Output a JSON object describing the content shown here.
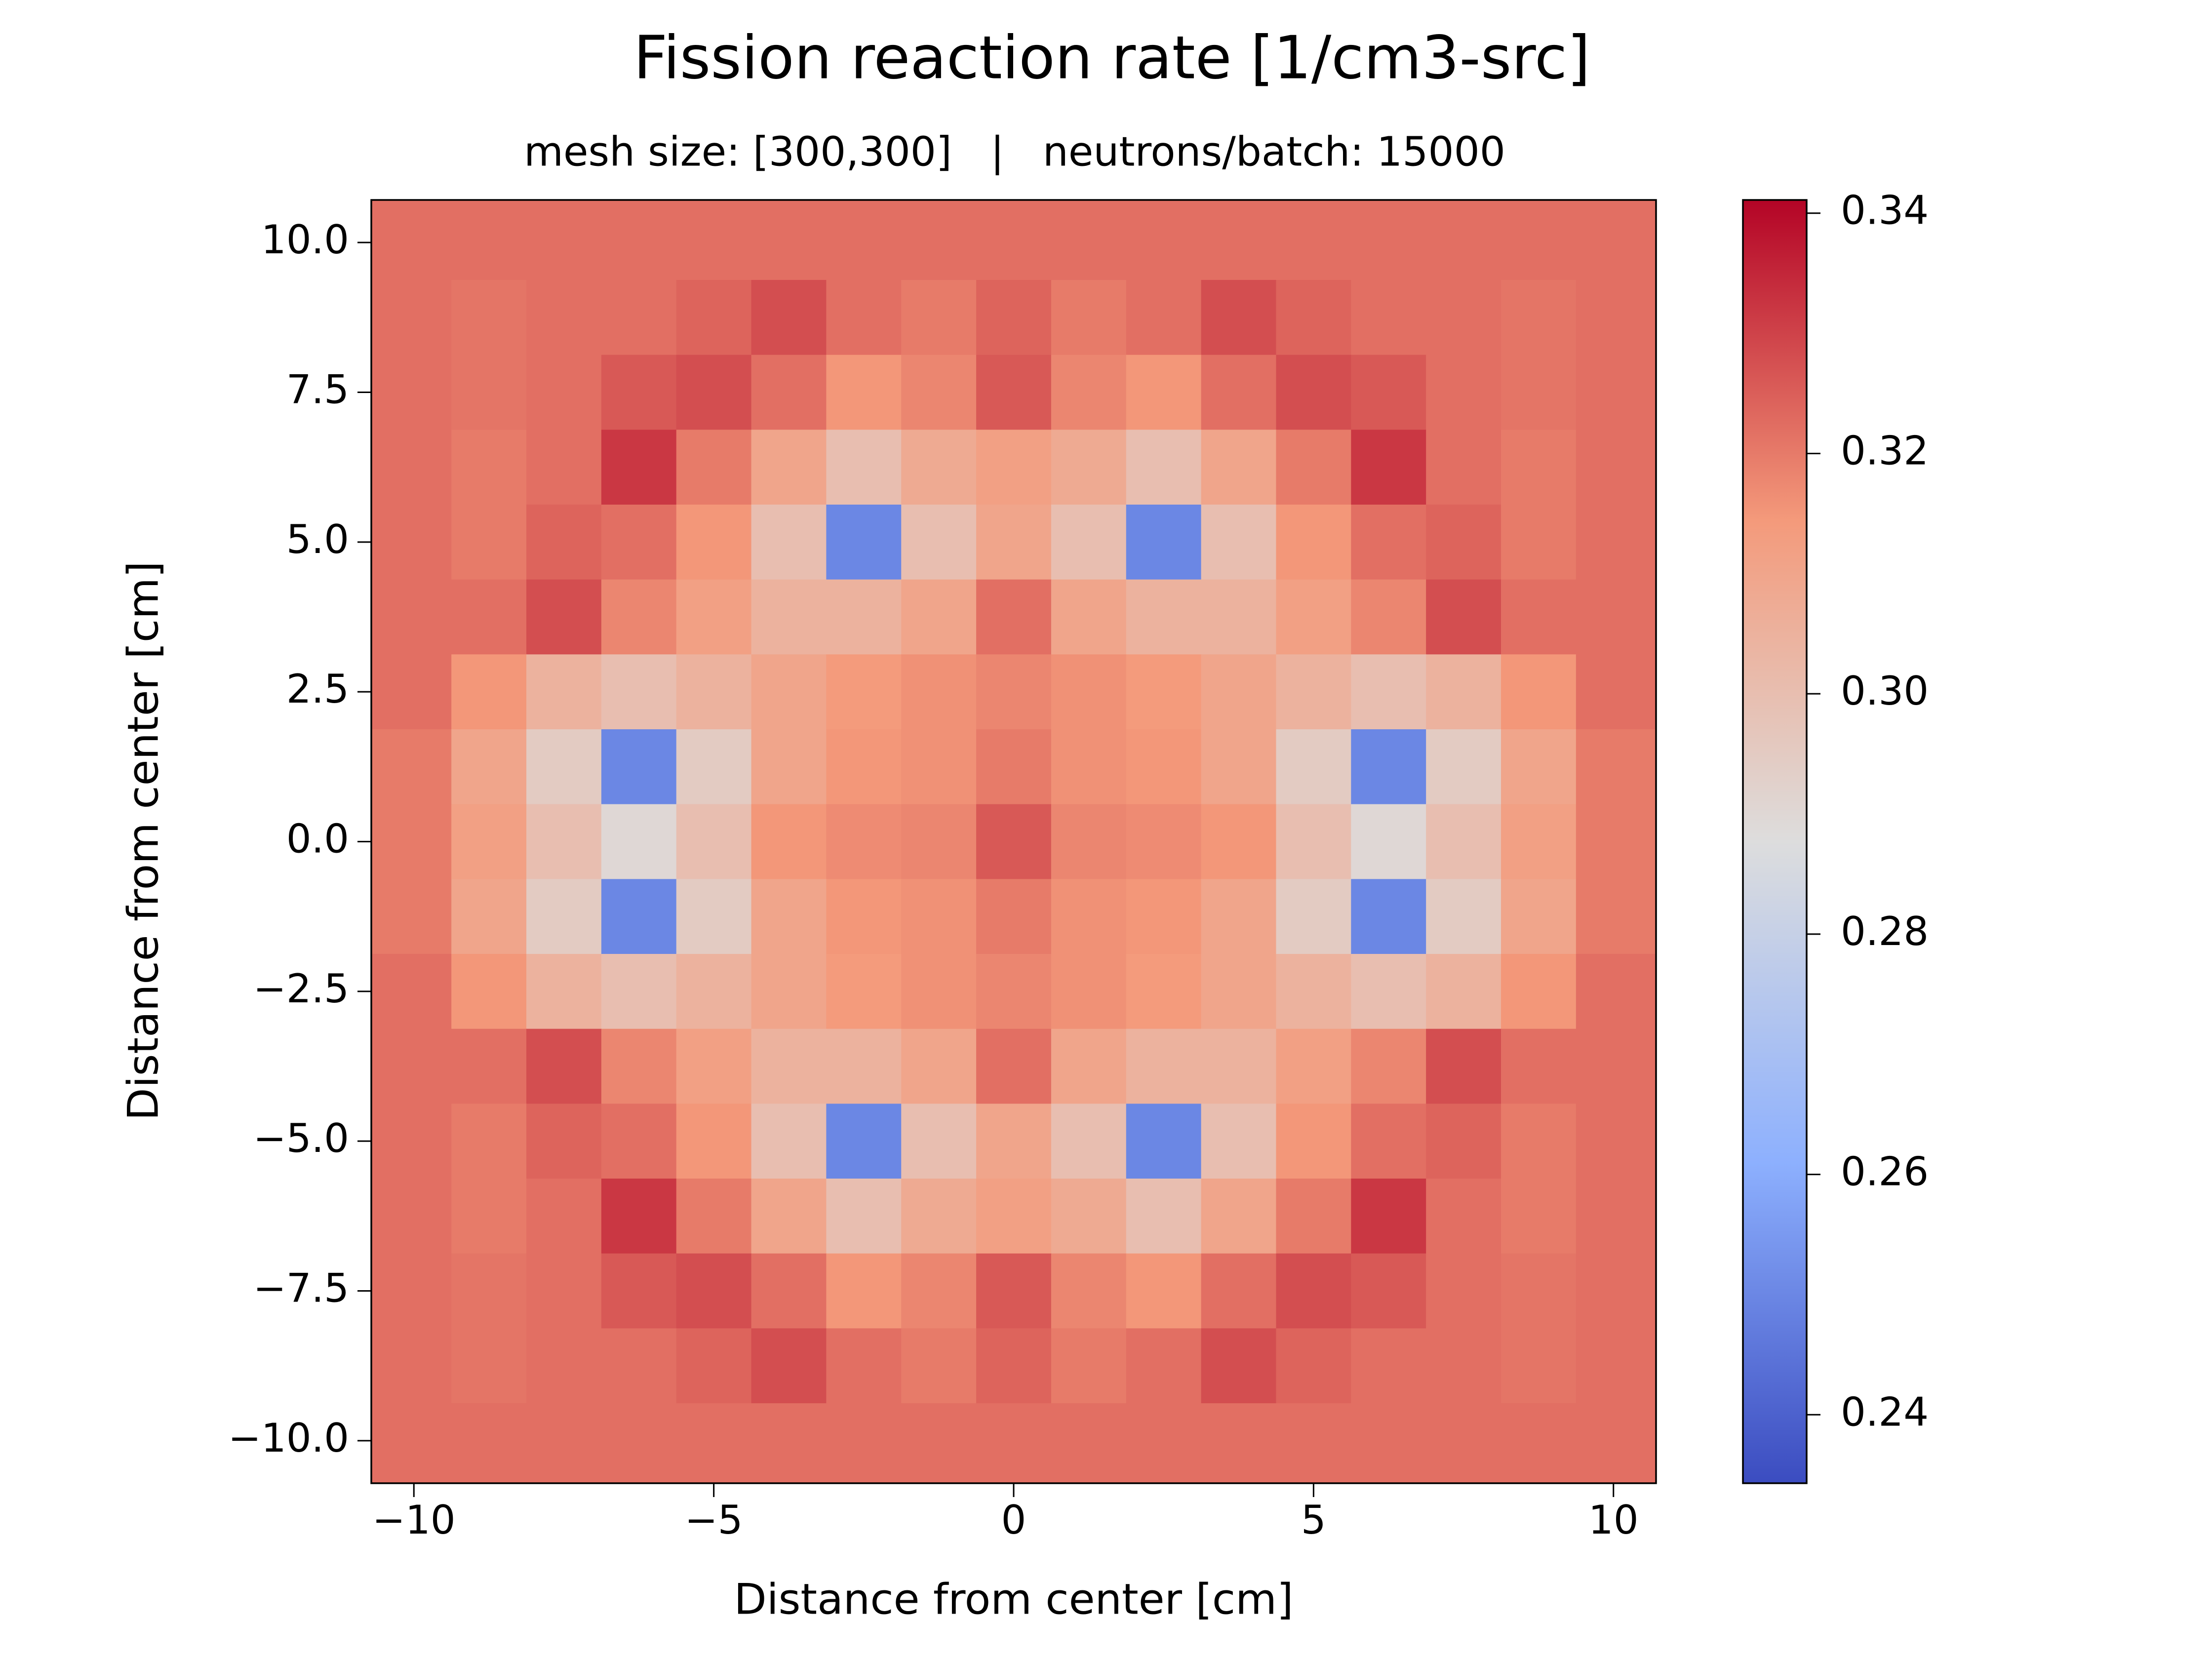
{
  "chart_data": {
    "type": "heatmap",
    "title": "Fission reaction rate [1/cm3-src]",
    "subtitle": "mesh size: [300,300]   |   neutrons/batch: 15000",
    "xlabel": "Distance from center [cm]",
    "ylabel": "Distance from center [cm]",
    "colormap": "coolwarm",
    "x": [
      -10,
      -8.75,
      -7.5,
      -6.25,
      -5,
      -3.75,
      -2.5,
      -1.25,
      0,
      1.25,
      2.5,
      3.75,
      5,
      6.25,
      7.5,
      8.75,
      10
    ],
    "y": [
      10,
      8.75,
      7.5,
      6.25,
      5,
      3.75,
      2.5,
      1.25,
      0,
      -1.25,
      -2.5,
      -3.75,
      -5,
      -6.25,
      -7.5,
      -8.75,
      -10
    ],
    "z": [
      [
        0.322,
        0.322,
        0.322,
        0.322,
        0.322,
        0.322,
        0.322,
        0.322,
        0.322,
        0.322,
        0.322,
        0.322,
        0.322,
        0.322,
        0.322,
        0.322,
        0.322
      ],
      [
        0.322,
        0.321,
        0.322,
        0.322,
        0.324,
        0.328,
        0.322,
        0.32,
        0.324,
        0.32,
        0.322,
        0.328,
        0.324,
        0.322,
        0.322,
        0.321,
        0.322
      ],
      [
        0.322,
        0.321,
        0.322,
        0.326,
        0.328,
        0.322,
        0.315,
        0.318,
        0.326,
        0.318,
        0.315,
        0.322,
        0.328,
        0.326,
        0.322,
        0.321,
        0.322
      ],
      [
        0.322,
        0.32,
        0.322,
        0.332,
        0.32,
        0.31,
        0.3,
        0.308,
        0.312,
        0.308,
        0.3,
        0.31,
        0.32,
        0.332,
        0.322,
        0.32,
        0.322
      ],
      [
        0.322,
        0.32,
        0.324,
        0.322,
        0.315,
        0.3,
        0.25,
        0.3,
        0.31,
        0.3,
        0.25,
        0.3,
        0.315,
        0.322,
        0.324,
        0.32,
        0.322
      ],
      [
        0.322,
        0.322,
        0.328,
        0.318,
        0.312,
        0.305,
        0.305,
        0.31,
        0.322,
        0.31,
        0.305,
        0.305,
        0.312,
        0.318,
        0.328,
        0.322,
        0.322
      ],
      [
        0.322,
        0.315,
        0.305,
        0.3,
        0.305,
        0.31,
        0.314,
        0.316,
        0.318,
        0.316,
        0.314,
        0.31,
        0.305,
        0.3,
        0.305,
        0.315,
        0.322
      ],
      [
        0.32,
        0.31,
        0.295,
        0.25,
        0.295,
        0.31,
        0.315,
        0.316,
        0.32,
        0.316,
        0.315,
        0.31,
        0.295,
        0.25,
        0.295,
        0.31,
        0.32
      ],
      [
        0.32,
        0.312,
        0.3,
        0.29,
        0.3,
        0.315,
        0.317,
        0.318,
        0.326,
        0.318,
        0.317,
        0.315,
        0.3,
        0.29,
        0.3,
        0.312,
        0.32
      ],
      [
        0.32,
        0.31,
        0.295,
        0.25,
        0.295,
        0.31,
        0.315,
        0.316,
        0.32,
        0.316,
        0.315,
        0.31,
        0.295,
        0.25,
        0.295,
        0.31,
        0.32
      ],
      [
        0.322,
        0.315,
        0.305,
        0.3,
        0.305,
        0.31,
        0.314,
        0.316,
        0.318,
        0.316,
        0.314,
        0.31,
        0.305,
        0.3,
        0.305,
        0.315,
        0.322
      ],
      [
        0.322,
        0.322,
        0.328,
        0.318,
        0.312,
        0.305,
        0.305,
        0.31,
        0.322,
        0.31,
        0.305,
        0.305,
        0.312,
        0.318,
        0.328,
        0.322,
        0.322
      ],
      [
        0.322,
        0.32,
        0.324,
        0.322,
        0.315,
        0.3,
        0.25,
        0.3,
        0.31,
        0.3,
        0.25,
        0.3,
        0.315,
        0.322,
        0.324,
        0.32,
        0.322
      ],
      [
        0.322,
        0.32,
        0.322,
        0.332,
        0.32,
        0.31,
        0.3,
        0.308,
        0.312,
        0.308,
        0.3,
        0.31,
        0.32,
        0.332,
        0.322,
        0.32,
        0.322
      ],
      [
        0.322,
        0.321,
        0.322,
        0.326,
        0.328,
        0.322,
        0.315,
        0.318,
        0.326,
        0.318,
        0.315,
        0.322,
        0.328,
        0.326,
        0.322,
        0.321,
        0.322
      ],
      [
        0.322,
        0.321,
        0.322,
        0.322,
        0.324,
        0.328,
        0.322,
        0.32,
        0.324,
        0.32,
        0.322,
        0.328,
        0.324,
        0.322,
        0.322,
        0.321,
        0.322
      ],
      [
        0.322,
        0.322,
        0.322,
        0.322,
        0.322,
        0.322,
        0.322,
        0.322,
        0.322,
        0.322,
        0.322,
        0.322,
        0.322,
        0.322,
        0.322,
        0.322,
        0.322
      ]
    ],
    "xlim": [
      -10.71,
      10.71
    ],
    "ylim": [
      -10.71,
      10.71
    ],
    "xticks": [
      {
        "value": -10,
        "label": "−10"
      },
      {
        "value": -5,
        "label": "−5"
      },
      0,
      5,
      10
    ],
    "yticks": [
      {
        "value": 10,
        "label": "10.0"
      },
      7.5,
      {
        "value": 5,
        "label": "5.0"
      },
      2.5,
      {
        "value": 0,
        "label": "0.0"
      },
      {
        "value": -2.5,
        "label": "−2.5"
      },
      {
        "value": -5,
        "label": "−5.0"
      },
      {
        "value": -7.5,
        "label": "−7.5"
      },
      {
        "value": -10,
        "label": "−10.0"
      }
    ],
    "colorbar": {
      "lim": [
        0.2343,
        0.3411
      ],
      "ticks": [
        0.24,
        0.26,
        0.28,
        {
          "value": 0.3,
          "label": "0.30"
        },
        0.32,
        0.34
      ]
    }
  }
}
